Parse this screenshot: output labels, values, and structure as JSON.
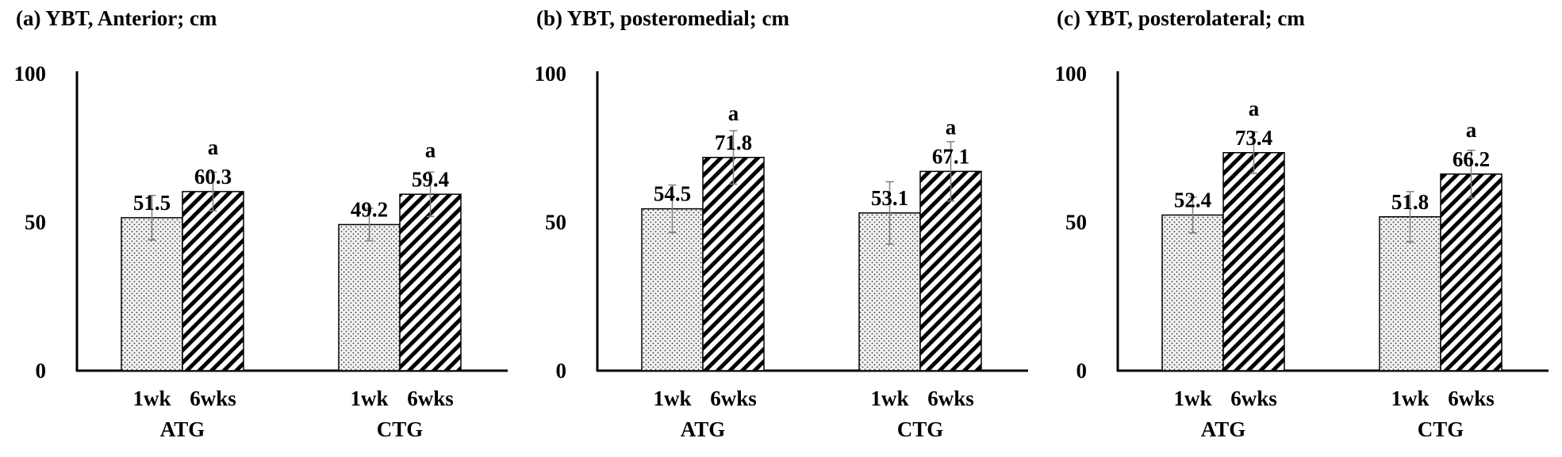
{
  "chart_data": [
    {
      "type": "bar",
      "title": "(a) YBT, Anterior; cm",
      "ylim": [
        0,
        100
      ],
      "yticks": [
        "0",
        "50",
        "100"
      ],
      "groups": [
        "ATG",
        "CTG"
      ],
      "categories": [
        "1wk",
        "6wks"
      ],
      "series": [
        {
          "group": "ATG",
          "values": [
            51.5,
            60.3
          ],
          "labels": [
            "51.5",
            "60.3"
          ],
          "error": [
            7.5,
            6.5
          ],
          "sig": [
            "",
            "a"
          ]
        },
        {
          "group": "CTG",
          "values": [
            49.2,
            59.4
          ],
          "labels": [
            "49.2",
            "59.4"
          ],
          "error": [
            5.5,
            7.5
          ],
          "sig": [
            "",
            "a"
          ]
        }
      ]
    },
    {
      "type": "bar",
      "title": "(b) YBT, posteromedial; cm",
      "ylim": [
        0,
        100
      ],
      "yticks": [
        "0",
        "50",
        "100"
      ],
      "groups": [
        "ATG",
        "CTG"
      ],
      "categories": [
        "1wk",
        "6wks"
      ],
      "series": [
        {
          "group": "ATG",
          "values": [
            54.5,
            71.8
          ],
          "labels": [
            "54.5",
            "71.8"
          ],
          "error": [
            8.0,
            9.0
          ],
          "sig": [
            "",
            "a"
          ]
        },
        {
          "group": "CTG",
          "values": [
            53.1,
            67.1
          ],
          "labels": [
            "53.1",
            "67.1"
          ],
          "error": [
            10.5,
            10.0
          ],
          "sig": [
            "",
            "a"
          ]
        }
      ]
    },
    {
      "type": "bar",
      "title": "(c) YBT, posterolateral; cm",
      "ylim": [
        0,
        100
      ],
      "yticks": [
        "0",
        "50",
        "100"
      ],
      "groups": [
        "ATG",
        "CTG"
      ],
      "categories": [
        "1wk",
        "6wks"
      ],
      "series": [
        {
          "group": "ATG",
          "values": [
            52.4,
            73.4
          ],
          "labels": [
            "52.4",
            "73.4"
          ],
          "error": [
            6.0,
            7.0
          ],
          "sig": [
            "",
            "a"
          ]
        },
        {
          "group": "CTG",
          "values": [
            51.8,
            66.2
          ],
          "labels": [
            "51.8",
            "66.2"
          ],
          "error": [
            8.5,
            8.0
          ],
          "sig": [
            "",
            "a"
          ]
        }
      ]
    }
  ],
  "colors": {
    "axis": "#000000",
    "bar_outline": "#000000",
    "dots_fill": "#f2f2f2",
    "dots": "#333333",
    "stripes": "#000000",
    "error_bar": "#7f7f7f"
  }
}
